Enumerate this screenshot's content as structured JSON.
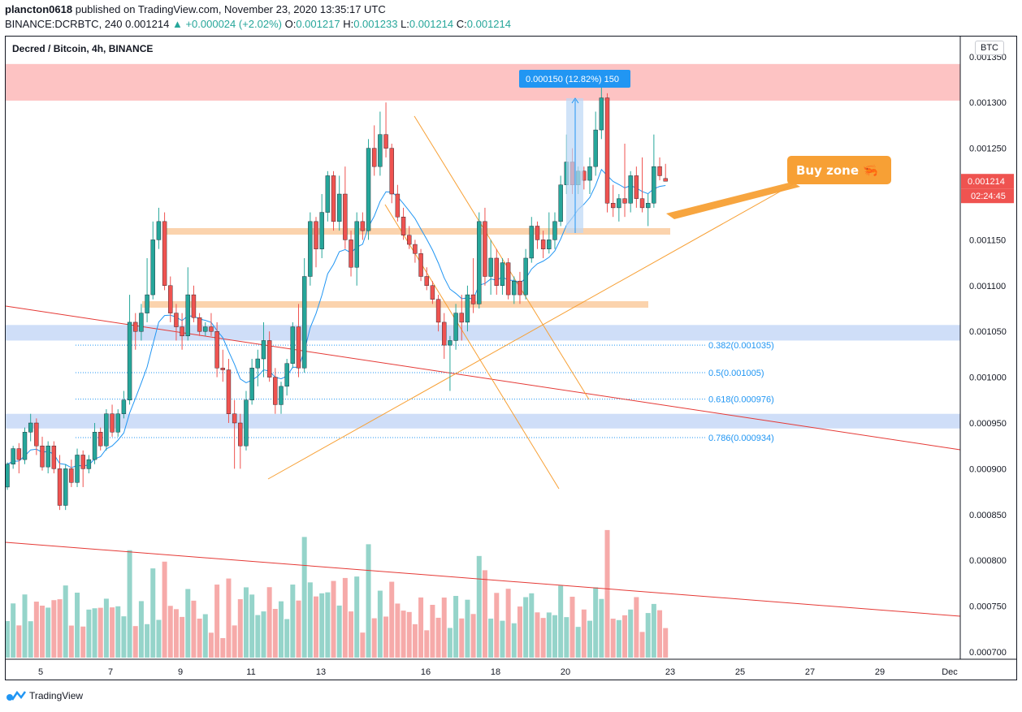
{
  "header": {
    "user": "plancton0618",
    "published_text": "published on TradingView.com, November 23, 2020 13:35:17 UTC",
    "symbol": "BINANCE:DCRBTC, 240",
    "last": "0.001214",
    "change": "▲ +0.000024 (+2.02%)",
    "o_label": "O:",
    "o": "0.001217",
    "h_label": "H:",
    "h": "0.001233",
    "l_label": "L:",
    "l": "0.001214",
    "c_label": "C:",
    "c": "0.001214"
  },
  "legend_text": "Decred / Bitcoin, 4h, BINANCE",
  "currency_badge": "BTC",
  "price_label": "0.001214",
  "countdown_label": "02:24:45",
  "footer_brand": "TradingView",
  "colors": {
    "up": "#26a69a",
    "down": "#ef5350",
    "ema": "#2196f3",
    "orange": "#f7a035",
    "red_line": "#e53935",
    "resistance_zone": "#fdb9b9",
    "support_zone": "#c7d8f7",
    "orange_zone": "#fbd3ad",
    "price_tag": "#ef5350",
    "measure": "#2196f3"
  },
  "annotations": {
    "buy_zone": "Buy zone 🦐",
    "measure_label": "0.000150 (12.82%) 150"
  },
  "fib_levels": [
    {
      "label": "0.382(0.001035)",
      "value": 0.001035
    },
    {
      "label": "0.5(0.001005)",
      "value": 0.001005
    },
    {
      "label": "0.618(0.000976)",
      "value": 0.000976
    },
    {
      "label": "0.786(0.000934)",
      "value": 0.000934
    }
  ],
  "zones": [
    {
      "name": "resistance",
      "from": 0.001302,
      "to": 0.001342,
      "color": "#fdb9b9"
    },
    {
      "name": "support-high",
      "from": 0.00104,
      "to": 0.001057,
      "color": "#c7d8f7"
    },
    {
      "name": "support-low",
      "from": 0.000944,
      "to": 0.00096,
      "color": "#c7d8f7"
    }
  ],
  "chart_data": {
    "type": "candlestick",
    "title": "Decred / Bitcoin, 4h, BINANCE",
    "x_ticks": [
      "5",
      "7",
      "9",
      "11",
      "13",
      "16",
      "18",
      "20",
      "23",
      "25",
      "27",
      "29",
      "Dec"
    ],
    "y_ticks": [
      "0.001350",
      "0.001300",
      "0.001250",
      "0.001200",
      "0.001150",
      "0.001100",
      "0.001050",
      "0.001000",
      "0.000950",
      "0.000900",
      "0.000850",
      "0.000800",
      "0.000750",
      "0.000700"
    ],
    "y_range": [
      0.000692,
      0.001372
    ],
    "x_range_days": [
      "Nov 4",
      "Dec 1"
    ],
    "candles": [
      [
        0.00088,
        0.000907,
        0.000877,
        0.000905
      ],
      [
        0.000905,
        0.000925,
        0.0009,
        0.000922
      ],
      [
        0.000922,
        0.000928,
        0.000895,
        0.00091
      ],
      [
        0.00091,
        0.000945,
        0.000905,
        0.00094
      ],
      [
        0.00094,
        0.00096,
        0.00093,
        0.00095
      ],
      [
        0.00095,
        0.000955,
        0.000915,
        0.000925
      ],
      [
        0.000925,
        0.000935,
        0.000898,
        0.000902
      ],
      [
        0.000902,
        0.00093,
        0.000895,
        0.000925
      ],
      [
        0.000925,
        0.00093,
        0.000895,
        0.0009
      ],
      [
        0.0009,
        0.000915,
        0.000855,
        0.00086
      ],
      [
        0.00086,
        0.000905,
        0.000855,
        0.0009
      ],
      [
        0.0009,
        0.00091,
        0.00088,
        0.000885
      ],
      [
        0.000885,
        0.000922,
        0.00088,
        0.000915
      ],
      [
        0.000915,
        0.00092,
        0.00088,
        0.0009
      ],
      [
        0.0009,
        0.000915,
        0.000895,
        0.00091
      ],
      [
        0.00091,
        0.00095,
        0.000905,
        0.00094
      ],
      [
        0.00094,
        0.000945,
        0.00092,
        0.000925
      ],
      [
        0.000925,
        0.000965,
        0.00092,
        0.00096
      ],
      [
        0.00096,
        0.00097,
        0.000935,
        0.00094
      ],
      [
        0.00094,
        0.000965,
        0.000935,
        0.00096
      ],
      [
        0.00096,
        0.000985,
        0.000955,
        0.000975
      ],
      [
        0.000975,
        0.00109,
        0.00097,
        0.00106
      ],
      [
        0.00106,
        0.00107,
        0.00103,
        0.00105
      ],
      [
        0.00105,
        0.00108,
        0.00104,
        0.00107
      ],
      [
        0.00107,
        0.00113,
        0.00106,
        0.00109
      ],
      [
        0.00109,
        0.00117,
        0.001085,
        0.00115
      ],
      [
        0.00115,
        0.001185,
        0.00114,
        0.00117
      ],
      [
        0.00117,
        0.00118,
        0.001095,
        0.0011
      ],
      [
        0.0011,
        0.00111,
        0.00106,
        0.00107
      ],
      [
        0.00107,
        0.00108,
        0.00104,
        0.001055
      ],
      [
        0.001055,
        0.00107,
        0.00103,
        0.001045
      ],
      [
        0.001045,
        0.00112,
        0.00104,
        0.00109
      ],
      [
        0.00109,
        0.0011,
        0.00106,
        0.001065
      ],
      [
        0.001065,
        0.00107,
        0.001045,
        0.00105
      ],
      [
        0.00105,
        0.00106,
        0.001045,
        0.001055
      ],
      [
        0.001055,
        0.00107,
        0.001045,
        0.00105
      ],
      [
        0.00105,
        0.00106,
        0.001,
        0.00101
      ],
      [
        0.00101,
        0.00103,
        0.000995,
        0.001008
      ],
      [
        0.001008,
        0.00102,
        0.00095,
        0.00096
      ],
      [
        0.00096,
        0.000975,
        0.0009,
        0.00095
      ],
      [
        0.00095,
        0.00096,
        0.0009,
        0.000925
      ],
      [
        0.000925,
        0.000985,
        0.00092,
        0.000975
      ],
      [
        0.000975,
        0.00102,
        0.00097,
        0.00101
      ],
      [
        0.00101,
        0.00103,
        0.00099,
        0.00102
      ],
      [
        0.00102,
        0.00106,
        0.001,
        0.00104
      ],
      [
        0.00104,
        0.00105,
        0.000995,
        0.001
      ],
      [
        0.001,
        0.00101,
        0.00096,
        0.00097
      ],
      [
        0.00097,
        0.000995,
        0.00096,
        0.00099
      ],
      [
        0.00099,
        0.00102,
        0.00098,
        0.001015
      ],
      [
        0.001015,
        0.00106,
        0.00101,
        0.001055
      ],
      [
        0.001055,
        0.00108,
        0.001,
        0.00101
      ],
      [
        0.00101,
        0.00113,
        0.001005,
        0.00111
      ],
      [
        0.00111,
        0.00118,
        0.0011,
        0.00117
      ],
      [
        0.00117,
        0.001175,
        0.00112,
        0.00114
      ],
      [
        0.00114,
        0.0012,
        0.00113,
        0.00118
      ],
      [
        0.00118,
        0.001225,
        0.00117,
        0.00122
      ],
      [
        0.00122,
        0.001225,
        0.00116,
        0.00117
      ],
      [
        0.00117,
        0.00122,
        0.00116,
        0.0012
      ],
      [
        0.0012,
        0.00123,
        0.00114,
        0.00115
      ],
      [
        0.00115,
        0.00116,
        0.00111,
        0.00112
      ],
      [
        0.00112,
        0.00118,
        0.0011,
        0.00117
      ],
      [
        0.00117,
        0.00118,
        0.00115,
        0.00116
      ],
      [
        0.00116,
        0.00126,
        0.00115,
        0.00125
      ],
      [
        0.00125,
        0.001275,
        0.00122,
        0.00123
      ],
      [
        0.00123,
        0.00129,
        0.00122,
        0.001265
      ],
      [
        0.001265,
        0.0013,
        0.00124,
        0.00125
      ],
      [
        0.00125,
        0.001255,
        0.00119,
        0.0012
      ],
      [
        0.0012,
        0.00121,
        0.00117,
        0.001175
      ],
      [
        0.001175,
        0.001185,
        0.00115,
        0.001155
      ],
      [
        0.001155,
        0.001165,
        0.00114,
        0.001145
      ],
      [
        0.001145,
        0.00115,
        0.001125,
        0.001135
      ],
      [
        0.001135,
        0.00114,
        0.001105,
        0.00111
      ],
      [
        0.00111,
        0.00112,
        0.001095,
        0.0011
      ],
      [
        0.0011,
        0.001105,
        0.00108,
        0.001085
      ],
      [
        0.001085,
        0.00109,
        0.00105,
        0.00106
      ],
      [
        0.00106,
        0.00107,
        0.00102,
        0.001035
      ],
      [
        0.001035,
        0.001045,
        0.000985,
        0.00104
      ],
      [
        0.00104,
        0.00108,
        0.00103,
        0.00107
      ],
      [
        0.00107,
        0.00109,
        0.00104,
        0.00106
      ],
      [
        0.00106,
        0.0011,
        0.00105,
        0.00109
      ],
      [
        0.00109,
        0.00113,
        0.00107,
        0.00108
      ],
      [
        0.00108,
        0.00118,
        0.001075,
        0.00117
      ],
      [
        0.00117,
        0.001185,
        0.0011,
        0.00111
      ],
      [
        0.00111,
        0.00115,
        0.00109,
        0.00113
      ],
      [
        0.00113,
        0.00114,
        0.00109,
        0.0011
      ],
      [
        0.0011,
        0.00113,
        0.00109,
        0.001125
      ],
      [
        0.001125,
        0.00113,
        0.001085,
        0.00109
      ],
      [
        0.00109,
        0.00111,
        0.00108,
        0.001105
      ],
      [
        0.001105,
        0.001115,
        0.00108,
        0.00109
      ],
      [
        0.00109,
        0.00114,
        0.001085,
        0.00113
      ],
      [
        0.00113,
        0.001175,
        0.001125,
        0.001165
      ],
      [
        0.001165,
        0.00117,
        0.00114,
        0.00115
      ],
      [
        0.00115,
        0.00116,
        0.00113,
        0.00114
      ],
      [
        0.00114,
        0.00118,
        0.001135,
        0.00115
      ],
      [
        0.00115,
        0.00118,
        0.00114,
        0.00117
      ],
      [
        0.00117,
        0.00122,
        0.001165,
        0.00121
      ],
      [
        0.00121,
        0.001265,
        0.0012,
        0.001235
      ],
      [
        0.001235,
        0.00125,
        0.0012,
        0.00121
      ],
      [
        0.00121,
        0.00123,
        0.0012,
        0.001225
      ],
      [
        0.001225,
        0.00123,
        0.001205,
        0.001215
      ],
      [
        0.001215,
        0.00124,
        0.0012,
        0.00123
      ],
      [
        0.00123,
        0.00129,
        0.00122,
        0.00127
      ],
      [
        0.00127,
        0.00132,
        0.00126,
        0.001305
      ],
      [
        0.001305,
        0.00131,
        0.00118,
        0.00119
      ],
      [
        0.00119,
        0.00121,
        0.001175,
        0.001185
      ],
      [
        0.001185,
        0.0012,
        0.00117,
        0.001195
      ],
      [
        0.001195,
        0.001255,
        0.001175,
        0.00119
      ],
      [
        0.00119,
        0.001225,
        0.00118,
        0.00122
      ],
      [
        0.00122,
        0.00123,
        0.001185,
        0.001195
      ],
      [
        0.001195,
        0.00124,
        0.00118,
        0.001185
      ],
      [
        0.001185,
        0.0012,
        0.001165,
        0.00119
      ],
      [
        0.00119,
        0.001265,
        0.001185,
        0.00123
      ],
      [
        0.00123,
        0.00124,
        0.001215,
        0.00122
      ],
      [
        0.001217,
        0.001233,
        0.001214,
        0.001214
      ]
    ],
    "volume_range": [
      0,
      1
    ]
  }
}
